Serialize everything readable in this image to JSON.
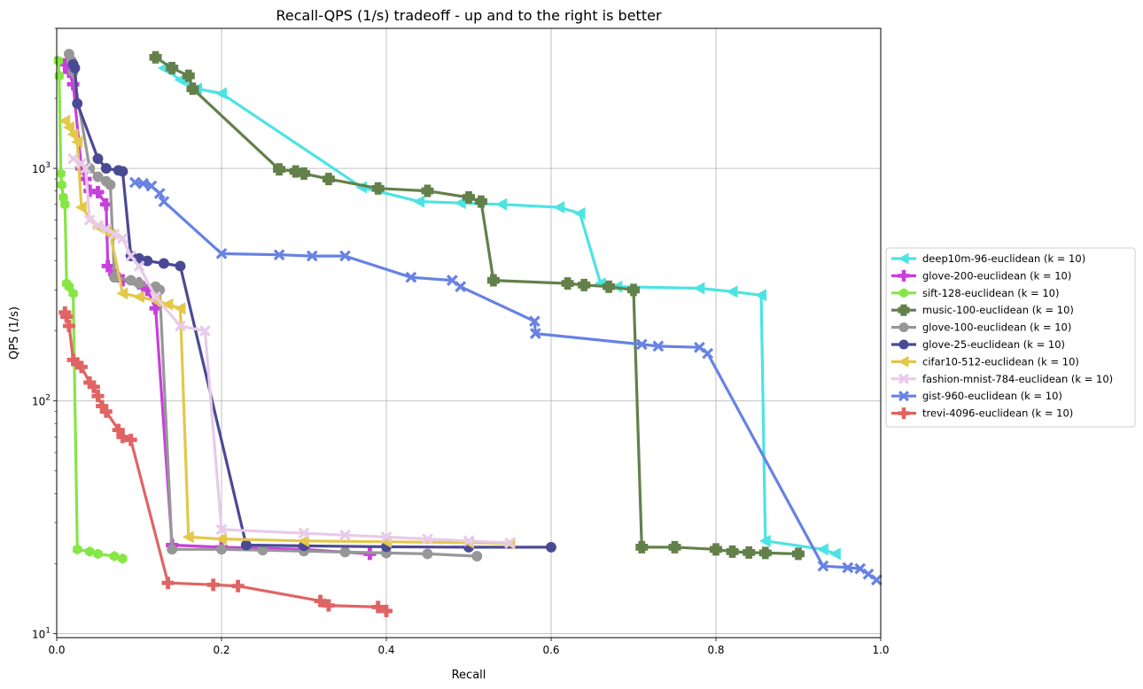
{
  "chart_data": {
    "type": "line",
    "title": "Recall-QPS (1/s) tradeoff - up and to the right is better",
    "xlabel": "Recall",
    "ylabel": "QPS (1/s)",
    "xlim": [
      0.0,
      1.0
    ],
    "ylim": [
      9.6,
      4000
    ],
    "yscale": "log",
    "grid": true,
    "legend_position": "center-right-outside",
    "x_ticks": [
      "0.0",
      "0.2",
      "0.4",
      "0.6",
      "0.8",
      "1.0"
    ],
    "y_ticks": [
      {
        "value": 10,
        "base": "10",
        "exp": "1"
      },
      {
        "value": 100,
        "base": "10",
        "exp": "2"
      },
      {
        "value": 1000,
        "base": "10",
        "exp": "3"
      }
    ],
    "series": [
      {
        "name": "deep10m-96-euclidean (k = 10)",
        "color": "#4de3e3",
        "marker": "triangle-left",
        "x": [
          0.13,
          0.15,
          0.17,
          0.2,
          0.37,
          0.44,
          0.49,
          0.54,
          0.61,
          0.635,
          0.66,
          0.68,
          0.78,
          0.82,
          0.855,
          0.86,
          0.93,
          0.945
        ],
        "y": [
          2700,
          2400,
          2200,
          2100,
          830,
          720,
          710,
          700,
          680,
          640,
          320,
          310,
          305,
          295,
          285,
          25,
          23,
          22
        ]
      },
      {
        "name": "glove-200-euclidean (k = 10)",
        "color": "#c83fdc",
        "marker": "plus",
        "x": [
          0.01,
          0.015,
          0.02,
          0.03,
          0.035,
          0.04,
          0.05,
          0.06,
          0.062,
          0.07,
          0.08,
          0.1,
          0.11,
          0.12,
          0.14,
          0.2,
          0.3,
          0.38
        ],
        "y": [
          2800,
          2600,
          2300,
          1000,
          900,
          800,
          790,
          700,
          380,
          350,
          330,
          320,
          300,
          250,
          24,
          23.5,
          23,
          22
        ]
      },
      {
        "name": "sift-128-euclidean (k = 10)",
        "color": "#85e645",
        "marker": "hexagon",
        "x": [
          0.002,
          0.003,
          0.005,
          0.006,
          0.008,
          0.01,
          0.012,
          0.015,
          0.02,
          0.025,
          0.04,
          0.05,
          0.07,
          0.08
        ],
        "y": [
          2900,
          2500,
          950,
          850,
          750,
          700,
          320,
          310,
          290,
          23,
          22.5,
          22,
          21.5,
          21
        ]
      },
      {
        "name": "music-100-euclidean (k = 10)",
        "color": "#63804a",
        "marker": "plus-fat",
        "x": [
          0.12,
          0.14,
          0.16,
          0.165,
          0.27,
          0.29,
          0.3,
          0.33,
          0.39,
          0.45,
          0.5,
          0.515,
          0.53,
          0.62,
          0.64,
          0.67,
          0.7,
          0.71,
          0.75,
          0.8,
          0.82,
          0.84,
          0.86,
          0.9
        ],
        "y": [
          3000,
          2700,
          2500,
          2200,
          990,
          970,
          950,
          900,
          820,
          800,
          750,
          720,
          330,
          320,
          315,
          310,
          300,
          23.5,
          23.5,
          23,
          22.5,
          22.3,
          22.2,
          22
        ]
      },
      {
        "name": "glove-100-euclidean (k = 10)",
        "color": "#979797",
        "marker": "circle",
        "x": [
          0.015,
          0.018,
          0.02,
          0.04,
          0.05,
          0.06,
          0.065,
          0.07,
          0.09,
          0.1,
          0.12,
          0.125,
          0.14,
          0.2,
          0.25,
          0.3,
          0.35,
          0.4,
          0.45,
          0.51
        ],
        "y": [
          3100,
          2900,
          2600,
          1000,
          920,
          880,
          850,
          340,
          330,
          320,
          310,
          300,
          23,
          23,
          22.8,
          22.6,
          22.4,
          22.2,
          22,
          21.5
        ]
      },
      {
        "name": "glove-25-euclidean (k = 10)",
        "color": "#4a4a94",
        "marker": "circle",
        "x": [
          0.02,
          0.022,
          0.025,
          0.05,
          0.06,
          0.075,
          0.08,
          0.09,
          0.1,
          0.11,
          0.13,
          0.15,
          0.23,
          0.3,
          0.4,
          0.5,
          0.6
        ],
        "y": [
          2800,
          2700,
          1900,
          1100,
          1000,
          980,
          970,
          420,
          410,
          400,
          390,
          380,
          24,
          23.8,
          23.6,
          23.5,
          23.5
        ]
      },
      {
        "name": "cifar10-512-euclidean (k = 10)",
        "color": "#e3c84a",
        "marker": "triangle-left",
        "x": [
          0.01,
          0.015,
          0.02,
          0.025,
          0.03,
          0.05,
          0.06,
          0.065,
          0.08,
          0.1,
          0.12,
          0.135,
          0.15,
          0.16,
          0.2,
          0.3,
          0.4,
          0.5,
          0.55
        ],
        "y": [
          1600,
          1500,
          1400,
          1300,
          680,
          560,
          540,
          520,
          290,
          280,
          270,
          260,
          250,
          26,
          25.5,
          25,
          24.8,
          24.6,
          24.4
        ]
      },
      {
        "name": "fashion-mnist-784-euclidean (k = 10)",
        "color": "#e8cbe8",
        "marker": "x",
        "x": [
          0.02,
          0.03,
          0.035,
          0.04,
          0.05,
          0.06,
          0.07,
          0.08,
          0.09,
          0.1,
          0.12,
          0.15,
          0.18,
          0.2,
          0.3,
          0.35,
          0.4,
          0.45,
          0.5,
          0.55
        ],
        "y": [
          1100,
          1050,
          1000,
          600,
          570,
          550,
          520,
          500,
          420,
          380,
          280,
          210,
          200,
          28,
          27,
          26.5,
          26,
          25.5,
          25,
          24.5
        ]
      },
      {
        "name": "gist-960-euclidean (k = 10)",
        "color": "#6782e3",
        "marker": "x",
        "x": [
          0.095,
          0.105,
          0.115,
          0.125,
          0.13,
          0.2,
          0.27,
          0.31,
          0.35,
          0.43,
          0.48,
          0.49,
          0.58,
          0.581,
          0.71,
          0.73,
          0.78,
          0.79,
          0.93,
          0.96,
          0.975,
          0.985,
          0.995
        ],
        "y": [
          870,
          860,
          840,
          780,
          720,
          430,
          425,
          420,
          420,
          340,
          330,
          310,
          220,
          195,
          175,
          172,
          170,
          160,
          19.5,
          19.2,
          19,
          18,
          17
        ]
      },
      {
        "name": "trevi-4096-euclidean (k = 10)",
        "color": "#e06464",
        "marker": "plus",
        "x": [
          0.01,
          0.012,
          0.015,
          0.02,
          0.025,
          0.03,
          0.04,
          0.045,
          0.05,
          0.055,
          0.06,
          0.075,
          0.08,
          0.09,
          0.135,
          0.19,
          0.22,
          0.32,
          0.33,
          0.39,
          0.4
        ],
        "y": [
          240,
          230,
          210,
          150,
          145,
          140,
          120,
          115,
          105,
          95,
          90,
          75,
          70,
          68,
          16.5,
          16.2,
          16,
          13.8,
          13.2,
          13,
          12.5
        ]
      }
    ]
  }
}
